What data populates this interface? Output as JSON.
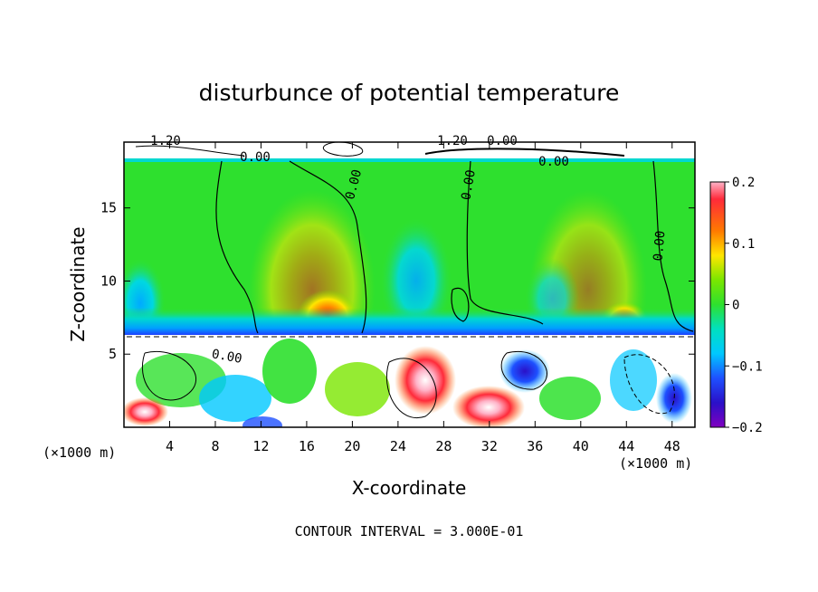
{
  "chart_data": {
    "type": "heatmap",
    "title": "disturbunce of potential temperature",
    "xlabel": "X-coordinate",
    "ylabel": "Z-coordinate",
    "x_unit_left": "(×1000 m)",
    "x_unit_right": "(×1000 m)",
    "xlim": [
      0,
      50
    ],
    "ylim": [
      0,
      19.5
    ],
    "x_ticks": [
      "4",
      "8",
      "12",
      "16",
      "20",
      "24",
      "28",
      "32",
      "36",
      "40",
      "44",
      "48"
    ],
    "x_tick_values": [
      4,
      8,
      12,
      16,
      20,
      24,
      28,
      32,
      36,
      40,
      44,
      48
    ],
    "y_ticks": [
      "5",
      "10",
      "15"
    ],
    "y_tick_values": [
      5,
      10,
      15
    ],
    "colorbar": {
      "min": -0.2,
      "max": 0.2,
      "tick_labels": [
        "0.2",
        "0.1",
        "0",
        "−0.1",
        "−0.2"
      ],
      "tick_values": [
        0.2,
        0.1,
        0,
        -0.1,
        -0.2
      ]
    },
    "contour_labels": [
      "0.00",
      "0.00",
      "0.00",
      "0.00",
      "0.00",
      "0.00",
      "1.20",
      "1.20",
      "0.00"
    ],
    "footer": "CONTOUR INTERVAL = 3.000E-01"
  }
}
